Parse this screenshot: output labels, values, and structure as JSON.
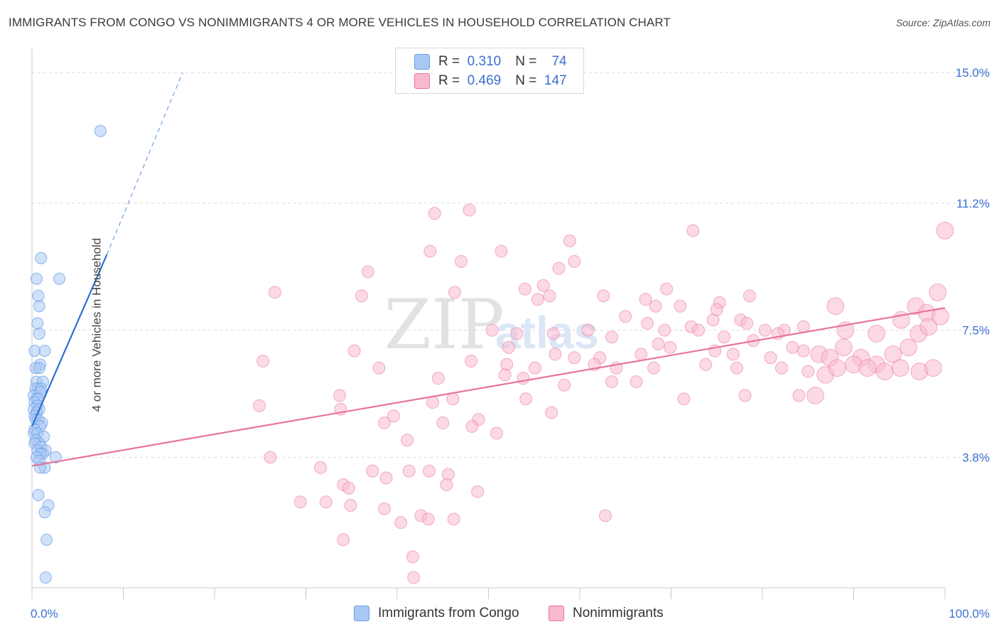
{
  "title": "IMMIGRANTS FROM CONGO VS NONIMMIGRANTS 4 OR MORE VEHICLES IN HOUSEHOLD CORRELATION CHART",
  "source": "Source: ZipAtlas.com",
  "watermark": {
    "zip": "ZIP",
    "atlas": "atlas"
  },
  "legend_top": {
    "rows": [
      {
        "r_key": "R =",
        "r_value": "0.310",
        "n_key": "N =",
        "n_value": "74",
        "color": "#a9c8f5"
      },
      {
        "r_key": "R =",
        "r_value": "0.469",
        "n_key": "N =",
        "n_value": "147",
        "color": "#f9b9cd"
      }
    ]
  },
  "legend_bottom": [
    {
      "label": "Immigrants from Congo",
      "color": "#a9c8f5"
    },
    {
      "label": "Nonimmigrants",
      "color": "#f9b9cd"
    }
  ],
  "chart_data": {
    "type": "scatter",
    "title": "IMMIGRANTS FROM CONGO VS NONIMMIGRANTS 4 OR MORE VEHICLES IN HOUSEHOLD CORRELATION CHART",
    "xlabel": "",
    "ylabel": "4 or more Vehicles in Household",
    "xlim": [
      0,
      100
    ],
    "ylim": [
      0,
      15.5
    ],
    "x_tick_labels": [
      "0.0%",
      "100.0%"
    ],
    "y_ticks": [
      3.8,
      7.5,
      11.2,
      15.0
    ],
    "y_tick_labels": [
      "3.8%",
      "7.5%",
      "11.2%",
      "15.0%"
    ],
    "grid": true,
    "legend_placement": "bottom",
    "series": [
      {
        "name": "Immigrants from Congo",
        "color": "#6b9fe3",
        "fill": "#a9c8f5",
        "trend": {
          "x0": 0.0,
          "y0": 4.7,
          "x1": 8.2,
          "y1": 9.7,
          "dashed_to": {
            "x": 16.5,
            "y": 15.0
          }
        },
        "points": [
          [
            7.5,
            13.3
          ],
          [
            1.0,
            9.6
          ],
          [
            3.0,
            9.0
          ],
          [
            0.5,
            9.0
          ],
          [
            0.7,
            8.5
          ],
          [
            0.8,
            8.2
          ],
          [
            0.6,
            7.7
          ],
          [
            0.8,
            7.4
          ],
          [
            0.3,
            6.9
          ],
          [
            1.4,
            6.9
          ],
          [
            0.9,
            6.5
          ],
          [
            0.4,
            6.4
          ],
          [
            0.8,
            6.4
          ],
          [
            0.5,
            6.0
          ],
          [
            1.2,
            6.0
          ],
          [
            0.7,
            5.8
          ],
          [
            0.4,
            5.8
          ],
          [
            1.0,
            5.8
          ],
          [
            0.2,
            5.6
          ],
          [
            0.9,
            5.7
          ],
          [
            0.5,
            5.5
          ],
          [
            0.7,
            5.5
          ],
          [
            0.3,
            5.4
          ],
          [
            0.6,
            5.3
          ],
          [
            0.2,
            5.2
          ],
          [
            0.8,
            5.2
          ],
          [
            0.5,
            5.1
          ],
          [
            0.3,
            5.0
          ],
          [
            0.4,
            4.9
          ],
          [
            0.7,
            4.9
          ],
          [
            1.1,
            4.8
          ],
          [
            0.9,
            4.7
          ],
          [
            0.3,
            4.6
          ],
          [
            0.2,
            4.5
          ],
          [
            0.6,
            4.5
          ],
          [
            1.3,
            4.4
          ],
          [
            0.4,
            4.3
          ],
          [
            0.8,
            4.2
          ],
          [
            0.3,
            4.2
          ],
          [
            1.0,
            4.1
          ],
          [
            1.5,
            4.0
          ],
          [
            0.6,
            4.0
          ],
          [
            1.2,
            3.9
          ],
          [
            0.9,
            3.9
          ],
          [
            2.6,
            3.8
          ],
          [
            0.5,
            3.8
          ],
          [
            0.8,
            3.7
          ],
          [
            1.4,
            3.5
          ],
          [
            0.9,
            3.5
          ],
          [
            0.7,
            2.7
          ],
          [
            1.8,
            2.4
          ],
          [
            1.4,
            2.2
          ],
          [
            1.6,
            1.4
          ],
          [
            1.5,
            0.3
          ]
        ]
      },
      {
        "name": "Nonimmigrants",
        "color": "#e8749b",
        "fill": "#f9b9cd",
        "trend": {
          "x0": 0.0,
          "y0": 3.55,
          "x1": 100.0,
          "y1": 8.15
        },
        "points": [
          [
            44.1,
            10.9
          ],
          [
            47.9,
            11.0
          ],
          [
            43.6,
            9.8
          ],
          [
            58.9,
            10.1
          ],
          [
            51.4,
            9.8
          ],
          [
            47.0,
            9.5
          ],
          [
            59.4,
            9.5
          ],
          [
            36.8,
            9.2
          ],
          [
            57.7,
            9.3
          ],
          [
            72.4,
            10.4
          ],
          [
            26.6,
            8.6
          ],
          [
            36.1,
            8.5
          ],
          [
            46.3,
            8.6
          ],
          [
            54.0,
            8.7
          ],
          [
            55.4,
            8.4
          ],
          [
            56.7,
            8.5
          ],
          [
            62.6,
            8.5
          ],
          [
            56.0,
            8.8
          ],
          [
            69.5,
            8.7
          ],
          [
            67.2,
            8.4
          ],
          [
            68.3,
            8.2
          ],
          [
            71.0,
            8.2
          ],
          [
            74.6,
            7.8
          ],
          [
            78.6,
            8.5
          ],
          [
            75.3,
            8.3
          ],
          [
            75.0,
            8.1
          ],
          [
            65.0,
            7.9
          ],
          [
            67.4,
            7.7
          ],
          [
            69.3,
            7.5
          ],
          [
            72.2,
            7.6
          ],
          [
            77.6,
            7.8
          ],
          [
            78.3,
            7.7
          ],
          [
            80.3,
            7.5
          ],
          [
            82.4,
            7.5
          ],
          [
            50.4,
            7.5
          ],
          [
            53.1,
            7.4
          ],
          [
            57.1,
            7.4
          ],
          [
            60.9,
            7.5
          ],
          [
            63.5,
            7.3
          ],
          [
            68.6,
            7.1
          ],
          [
            73.0,
            7.5
          ],
          [
            75.8,
            7.3
          ],
          [
            79.0,
            7.2
          ],
          [
            81.7,
            7.4
          ],
          [
            84.5,
            7.6
          ],
          [
            88.0,
            8.2
          ],
          [
            89.1,
            7.5
          ],
          [
            92.5,
            7.4
          ],
          [
            95.2,
            7.8
          ],
          [
            96.8,
            8.2
          ],
          [
            98.0,
            8.0
          ],
          [
            99.2,
            8.6
          ],
          [
            100.0,
            10.4
          ],
          [
            35.3,
            6.9
          ],
          [
            52.2,
            7.0
          ],
          [
            57.3,
            6.8
          ],
          [
            59.4,
            6.7
          ],
          [
            62.2,
            6.7
          ],
          [
            66.7,
            6.8
          ],
          [
            69.9,
            7.0
          ],
          [
            74.8,
            6.9
          ],
          [
            76.8,
            6.8
          ],
          [
            80.9,
            6.7
          ],
          [
            83.3,
            7.0
          ],
          [
            84.5,
            6.9
          ],
          [
            86.2,
            6.8
          ],
          [
            87.4,
            6.7
          ],
          [
            88.9,
            7.0
          ],
          [
            90.8,
            6.7
          ],
          [
            92.5,
            6.5
          ],
          [
            94.3,
            6.8
          ],
          [
            96.0,
            7.0
          ],
          [
            97.1,
            7.4
          ],
          [
            98.2,
            7.6
          ],
          [
            99.5,
            7.9
          ],
          [
            25.3,
            6.6
          ],
          [
            38.0,
            6.4
          ],
          [
            48.1,
            6.6
          ],
          [
            52.0,
            6.5
          ],
          [
            55.1,
            6.4
          ],
          [
            61.6,
            6.5
          ],
          [
            64.0,
            6.4
          ],
          [
            68.1,
            6.4
          ],
          [
            73.8,
            6.5
          ],
          [
            77.2,
            6.4
          ],
          [
            82.1,
            6.4
          ],
          [
            85.0,
            6.3
          ],
          [
            86.9,
            6.2
          ],
          [
            88.2,
            6.4
          ],
          [
            90.0,
            6.5
          ],
          [
            91.5,
            6.4
          ],
          [
            93.4,
            6.3
          ],
          [
            95.1,
            6.4
          ],
          [
            97.2,
            6.3
          ],
          [
            98.7,
            6.4
          ],
          [
            44.5,
            6.1
          ],
          [
            51.8,
            6.2
          ],
          [
            53.8,
            6.1
          ],
          [
            58.3,
            5.9
          ],
          [
            63.5,
            6.0
          ],
          [
            66.2,
            6.0
          ],
          [
            78.1,
            5.6
          ],
          [
            84.0,
            5.6
          ],
          [
            85.8,
            5.6
          ],
          [
            24.9,
            5.3
          ],
          [
            33.7,
            5.6
          ],
          [
            43.9,
            5.4
          ],
          [
            46.1,
            5.5
          ],
          [
            54.1,
            5.5
          ],
          [
            71.4,
            5.5
          ],
          [
            33.8,
            5.2
          ],
          [
            39.6,
            5.0
          ],
          [
            38.6,
            4.8
          ],
          [
            45.0,
            4.8
          ],
          [
            48.9,
            4.9
          ],
          [
            48.2,
            4.7
          ],
          [
            56.9,
            5.1
          ],
          [
            50.9,
            4.5
          ],
          [
            41.1,
            4.3
          ],
          [
            26.1,
            3.8
          ],
          [
            31.6,
            3.5
          ],
          [
            37.3,
            3.4
          ],
          [
            41.3,
            3.4
          ],
          [
            43.5,
            3.4
          ],
          [
            38.8,
            3.2
          ],
          [
            45.6,
            3.3
          ],
          [
            34.1,
            3.0
          ],
          [
            34.7,
            2.9
          ],
          [
            45.4,
            3.0
          ],
          [
            48.8,
            2.8
          ],
          [
            29.4,
            2.5
          ],
          [
            32.2,
            2.5
          ],
          [
            34.9,
            2.4
          ],
          [
            38.6,
            2.3
          ],
          [
            42.6,
            2.1
          ],
          [
            43.4,
            2.0
          ],
          [
            40.4,
            1.9
          ],
          [
            46.2,
            2.0
          ],
          [
            62.8,
            2.1
          ],
          [
            34.1,
            1.4
          ],
          [
            41.7,
            0.9
          ],
          [
            41.8,
            0.3
          ]
        ]
      }
    ]
  }
}
